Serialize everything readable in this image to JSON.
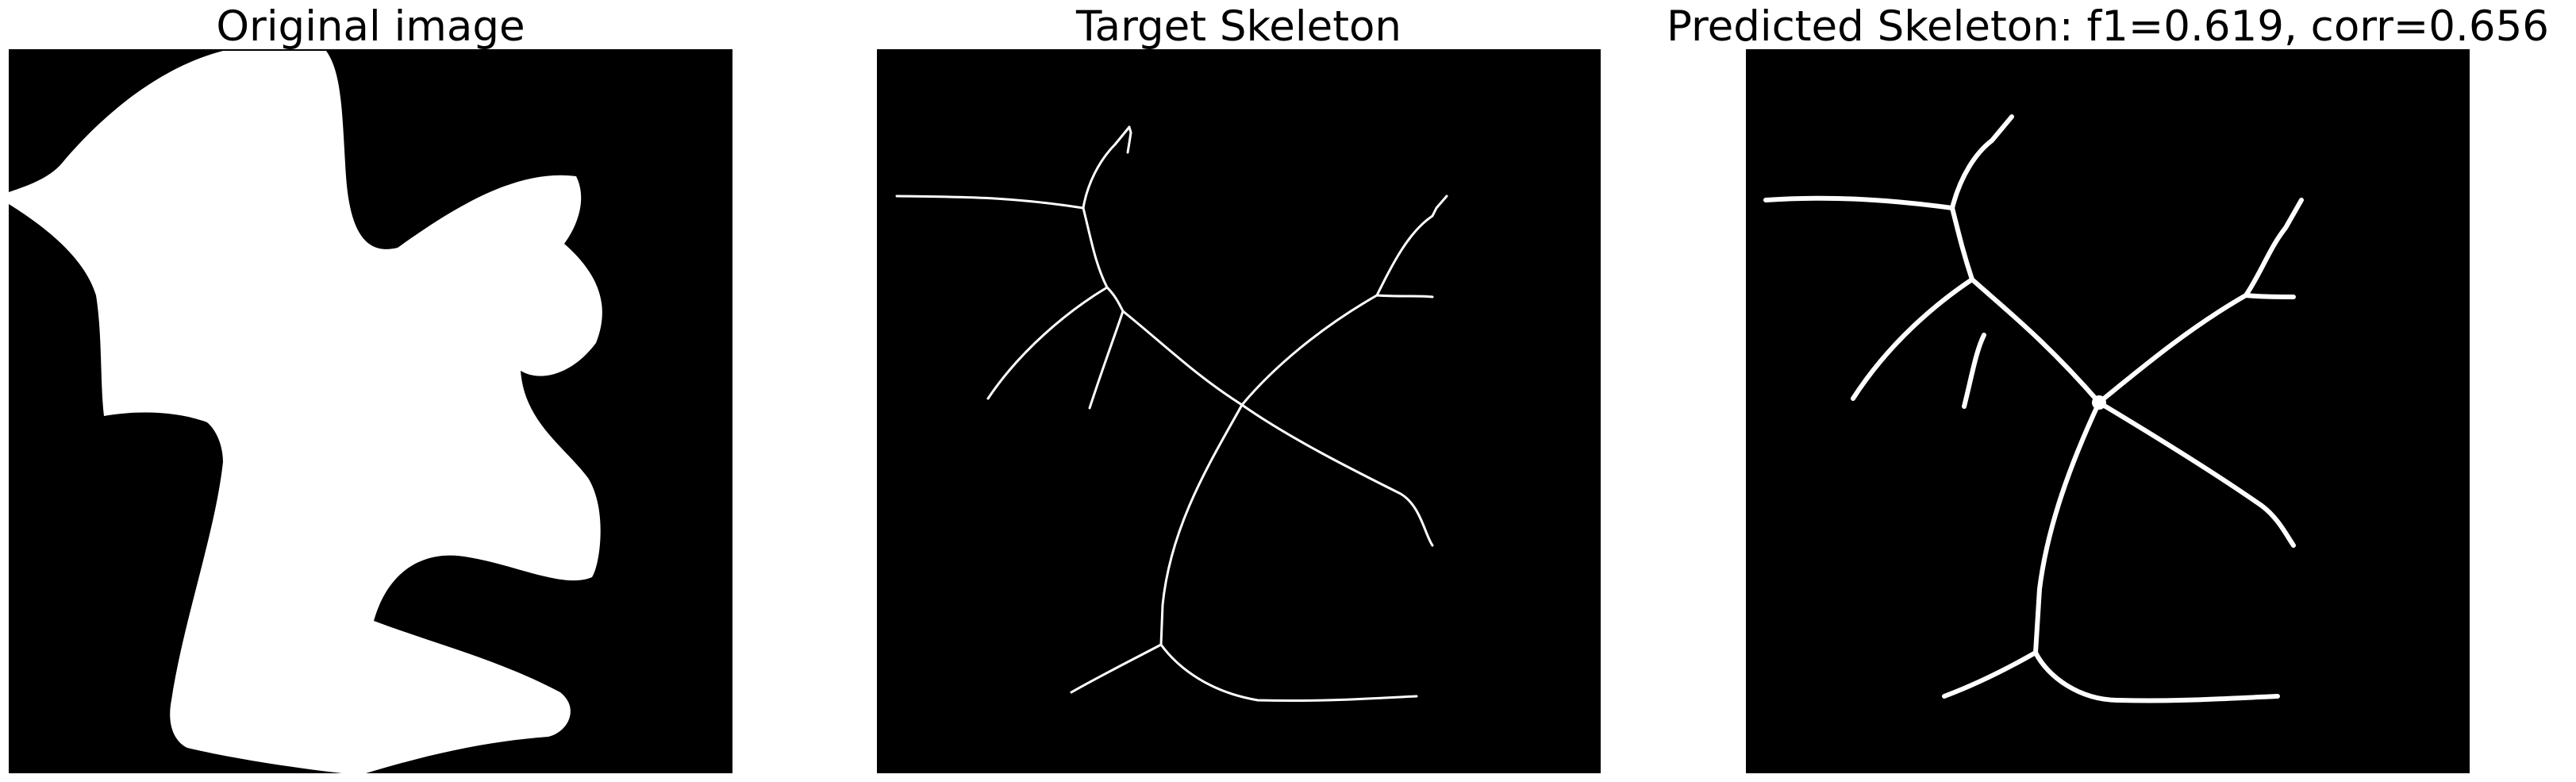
{
  "figure": {
    "panels": [
      {
        "title": "Original image"
      },
      {
        "title": "Target Skeleton"
      },
      {
        "title": "Predicted Skeleton: f1=0.619, corr=0.656"
      }
    ]
  },
  "colors": {
    "background": "#ffffff",
    "image_background": "#000000",
    "foreground": "#ffffff"
  }
}
